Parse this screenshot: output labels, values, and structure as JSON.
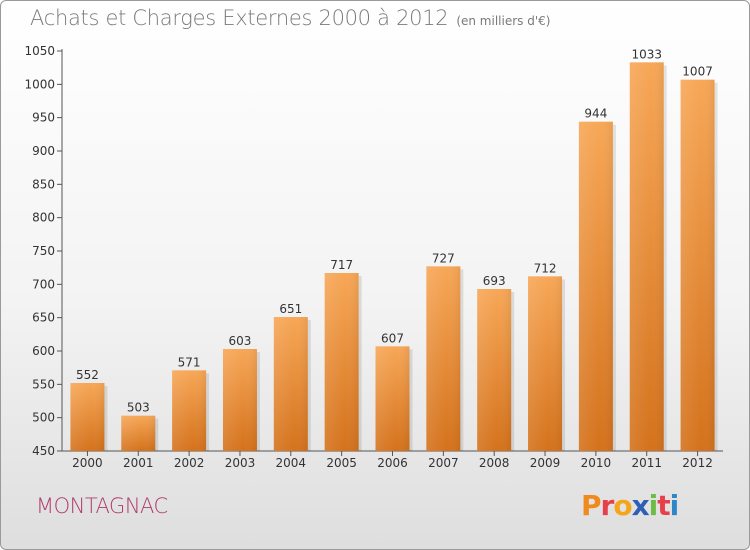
{
  "title": "Achats et Charges Externes 2000 à 2012",
  "unit": "(en milliers d'€)",
  "place": "MONTAGNAC",
  "logo": {
    "letters": [
      "P",
      "r",
      "o",
      "x",
      "i",
      "t",
      "i"
    ],
    "colors": [
      "#f08a1c",
      "#e6404a",
      "#f5a51a",
      "#2e5fb5",
      "#6cbd45",
      "#e6404a",
      "#2e86c9"
    ]
  },
  "colors": {
    "bar_light": "#f7a757",
    "bar_dark": "#d4721c",
    "title": "#7a7a7a",
    "place": "#b13b6e"
  },
  "chart_data": {
    "type": "bar",
    "categories": [
      "2000",
      "2001",
      "2002",
      "2003",
      "2004",
      "2005",
      "2006",
      "2007",
      "2008",
      "2009",
      "2010",
      "2011",
      "2012"
    ],
    "values": [
      552,
      503,
      571,
      603,
      651,
      717,
      607,
      727,
      693,
      712,
      944,
      1033,
      1007
    ],
    "ylim": [
      450,
      1050
    ],
    "yticks": [
      450,
      500,
      550,
      600,
      650,
      700,
      750,
      800,
      850,
      900,
      950,
      1000,
      1050
    ],
    "grid": false,
    "data_labels": true
  }
}
